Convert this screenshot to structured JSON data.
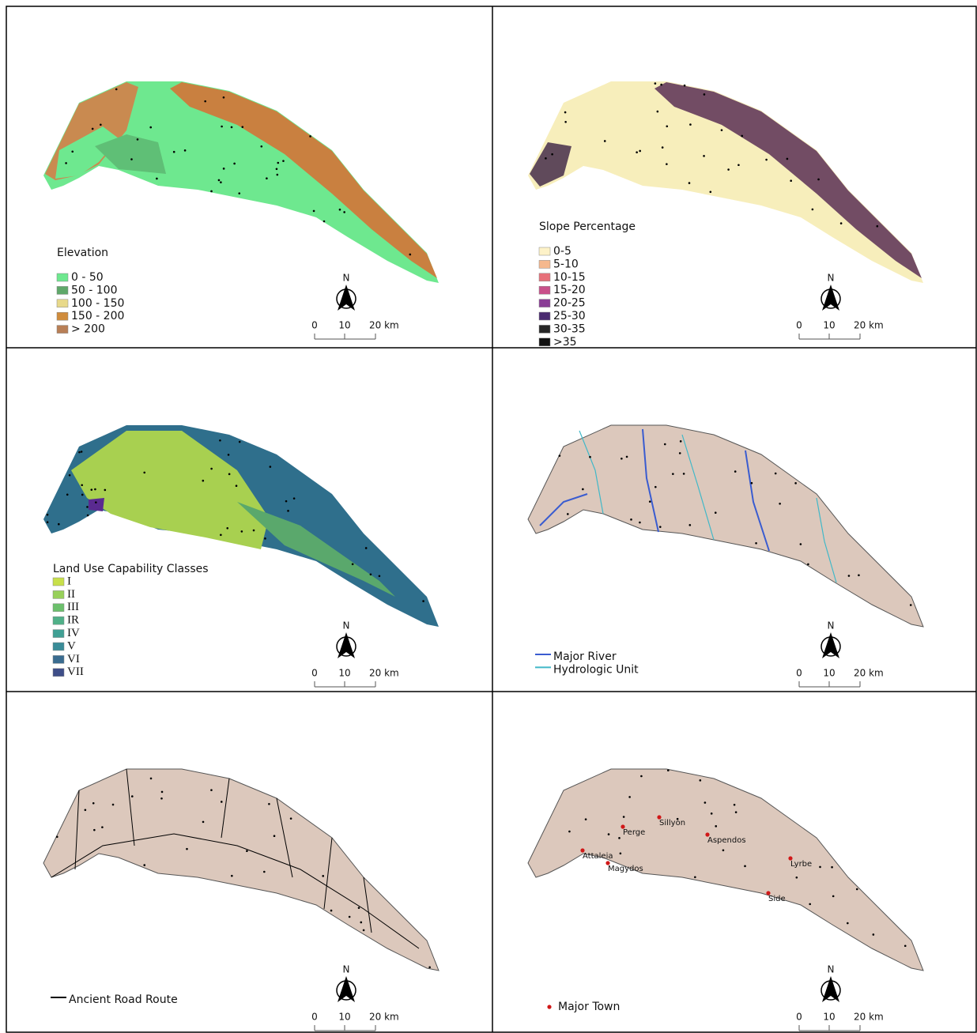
{
  "panels": [
    {
      "legend": {
        "title": "Elevation",
        "items": [
          {
            "label": "0 - 50",
            "color": "#6ee88f"
          },
          {
            "label": "50 - 100",
            "color": "#5fa86a"
          },
          {
            "label": "100 - 150",
            "color": "#e8d98a"
          },
          {
            "label": "150 - 200",
            "color": "#d08c3c"
          },
          {
            "label": "> 200",
            "color": "#b87f56"
          }
        ]
      },
      "north": "N",
      "scale": [
        "0",
        "10",
        "20 km"
      ]
    },
    {
      "legend": {
        "title": "Slope Percentage",
        "items": [
          {
            "label": "0-5",
            "color": "#fdf2c8"
          },
          {
            "label": "5-10",
            "color": "#f5b88e"
          },
          {
            "label": "10-15",
            "color": "#e7707a"
          },
          {
            "label": "15-20",
            "color": "#c9508a"
          },
          {
            "label": "20-25",
            "color": "#8a3c96"
          },
          {
            "label": "25-30",
            "color": "#4a2a70"
          },
          {
            "label": "30-35",
            "color": "#262626"
          },
          {
            "label": ">35",
            "color": "#111111"
          }
        ]
      },
      "north": "N",
      "scale": [
        "0",
        "10",
        "20 km"
      ]
    },
    {
      "legend": {
        "title": "Land Use Capability Classes",
        "items": [
          {
            "label": "I",
            "color": "#c8e04a"
          },
          {
            "label": "II",
            "color": "#98d05a"
          },
          {
            "label": "III",
            "color": "#6cc06c"
          },
          {
            "label": "IR",
            "color": "#50b088"
          },
          {
            "label": "IV",
            "color": "#40a094"
          },
          {
            "label": "V",
            "color": "#3a8c98"
          },
          {
            "label": "VI",
            "color": "#3a6c90"
          },
          {
            "label": "VII",
            "color": "#3e4e88"
          }
        ]
      },
      "north": "N",
      "scale": [
        "0",
        "10",
        "20 km"
      ]
    },
    {
      "legend": {
        "items": [
          {
            "label": "Major River",
            "color": "#3a5cd0"
          },
          {
            "label": "Hydrologic Unit",
            "color": "#40b8c8"
          }
        ]
      },
      "north": "N",
      "scale": [
        "0",
        "10",
        "20 km"
      ]
    },
    {
      "legend": {
        "items": [
          {
            "label": "Ancient Road Route",
            "color": "#000000"
          }
        ]
      },
      "north": "N",
      "scale": [
        "0",
        "10",
        "20 km"
      ]
    },
    {
      "legend": {
        "items": [
          {
            "label": "Major Town",
            "color": "#d01818"
          }
        ]
      },
      "towns": [
        "Attaleia",
        "Perge",
        "Sillyon",
        "Aspendos",
        "Magydos",
        "Lyrbe",
        "Side"
      ],
      "north": "N",
      "scale": [
        "0",
        "10",
        "20 km"
      ]
    }
  ]
}
